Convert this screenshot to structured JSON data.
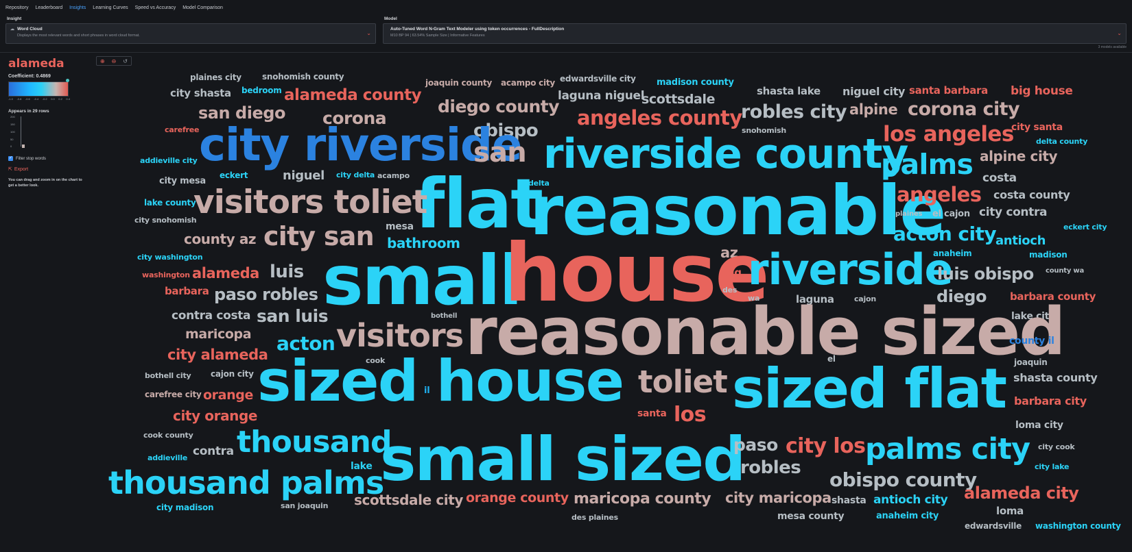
{
  "nav": {
    "tabs": [
      "Repository",
      "Leaderboard",
      "Insights",
      "Learning Curves",
      "Speed vs Accuracy",
      "Model Comparison"
    ],
    "active": "Insights"
  },
  "insight": {
    "label": "Insight",
    "title": "Word Cloud",
    "description": "Displays the most relevant words and short phrases in word cloud format."
  },
  "model": {
    "label": "Model",
    "title": "Auto-Tuned Word N-Gram Text Modeler using token occurrences - FullDescription",
    "description": "M10 BP 94 | 63.54% Sample Size | Informative Features",
    "count": "3 models available"
  },
  "sidebar": {
    "term": "alameda",
    "coefficient_label": "Coefficient:",
    "coefficient": "0.4869",
    "gradient_ticks": [
      "-1.0",
      "-0.8",
      "-0.6",
      "-0.4",
      "-0.2",
      "0.0",
      "0.2",
      "0.4"
    ],
    "appears": "Appears in 29 rows",
    "histogram_ticks": [
      "200",
      "150",
      "100",
      "50",
      "0"
    ],
    "filter_label": "Filter stop words",
    "export_label": "Export",
    "help": "You can drag and zoom in on the chart to get a better look."
  },
  "colors": {
    "positive": "#e8645c",
    "negative": "#2bd3f7",
    "neutral": "#b6bec4"
  },
  "words": [
    "plaines city",
    "snohomish county",
    "joaquin county",
    "acampo city",
    "edwardsville city",
    "madison county",
    "city shasta",
    "bedroom",
    "alameda county",
    "laguna niguel",
    "scottsdale",
    "shasta lake",
    "niguel city",
    "santa barbara",
    "big house",
    "san diego",
    "corona",
    "diego county",
    "angeles county",
    "robles city",
    "alpine",
    "corona city",
    "carefree",
    "obispo",
    "snohomish",
    "los angeles",
    "city santa",
    "delta county",
    "city riverside",
    "san",
    "riverside county",
    "alpine city",
    "addieville city",
    "palms",
    "costa",
    "city mesa",
    "eckert",
    "niguel",
    "city delta",
    "acampo",
    "delta",
    "flat",
    "reasonable",
    "angeles",
    "costa county",
    "lake county",
    "visitors toliet",
    "plaines",
    "el cajon",
    "city contra",
    "city snohomish",
    "mesa",
    "city san",
    "county az",
    "acton city",
    "eckert city",
    "bathroom",
    "antioch",
    "city washington",
    "az",
    "anaheim",
    "madison",
    "small",
    "house",
    "riverside",
    "alameda",
    "luis",
    "luis obispo",
    "county wa",
    "washington",
    "big",
    "barbara",
    "paso robles",
    "des",
    "diego",
    "barbara county",
    "laguna",
    "wa",
    "cajon",
    "contra costa",
    "san luis",
    "bothell",
    "lake city",
    "maricopa",
    "visitors",
    "reasonable sized",
    "acton",
    "county il",
    "city alameda",
    "cook",
    "el",
    "joaquin",
    "bothell city",
    "cajon city",
    "sized house",
    "toliet",
    "sized flat",
    "shasta county",
    "il",
    "carefree city",
    "orange",
    "barbara city",
    "santa",
    "los",
    "city orange",
    "loma city",
    "thousand",
    "cook county",
    "small sized",
    "paso",
    "city los",
    "palms city",
    "city cook",
    "addieville",
    "contra",
    "lake",
    "robles",
    "city lake",
    "thousand palms",
    "obispo county",
    "scottsdale city",
    "orange county",
    "maricopa county",
    "city maricopa",
    "shasta",
    "antioch city",
    "alameda city",
    "city madison",
    "san joaquin",
    "loma",
    "mesa county",
    "anaheim city",
    "des plaines",
    "edwardsville",
    "washington county"
  ]
}
